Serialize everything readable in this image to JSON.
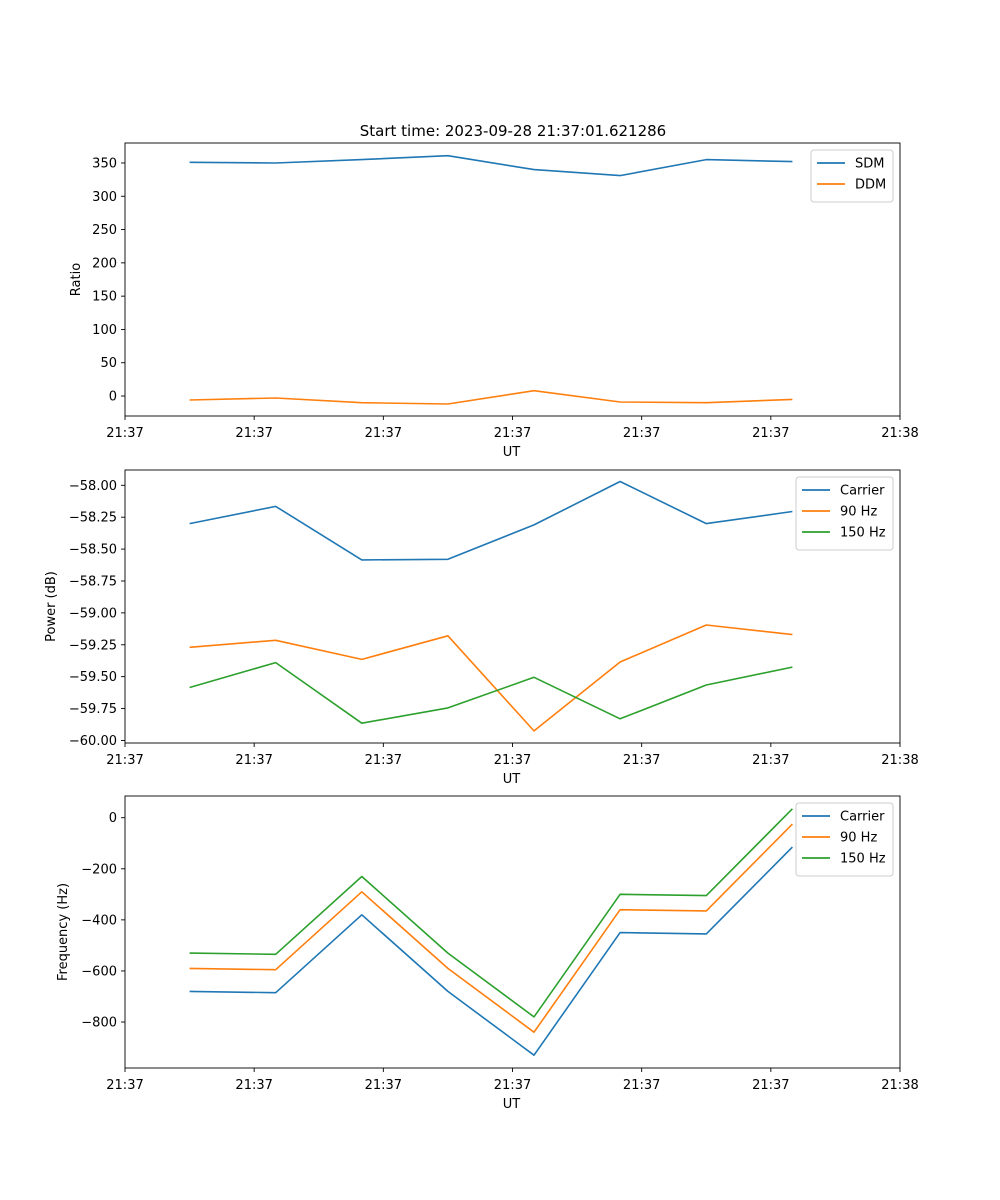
{
  "figure_title": "Start time: 2023-09-28 21:37:01.621286",
  "colors": {
    "blue": "#1f77b4",
    "orange": "#ff7f0e",
    "green": "#2ca02c"
  },
  "chart_data": [
    {
      "type": "line",
      "title": "Start time: 2023-09-28 21:37:01.621286",
      "xlabel": "UT",
      "ylabel": "Ratio",
      "xlim": [
        0,
        9
      ],
      "x": [
        0.75,
        1.75,
        2.75,
        3.75,
        4.75,
        5.75,
        6.75,
        7.75
      ],
      "xtick_positions": [
        0,
        1.5,
        3,
        4.5,
        6,
        7.5,
        9
      ],
      "xtick_labels": [
        "21:37",
        "21:37",
        "21:37",
        "21:37",
        "21:37",
        "21:37",
        "21:38"
      ],
      "ylim": [
        -30,
        380
      ],
      "yticks": [
        0,
        50,
        100,
        150,
        200,
        250,
        300,
        350
      ],
      "ytick_labels": [
        "0",
        "50",
        "100",
        "150",
        "200",
        "250",
        "300",
        "350"
      ],
      "legend_position": "top-right",
      "series": [
        {
          "name": "SDM",
          "color": "#1f77b4",
          "values": [
            351,
            350,
            355,
            361,
            340,
            331,
            355,
            352
          ]
        },
        {
          "name": "DDM",
          "color": "#ff7f0e",
          "values": [
            -6,
            -3,
            -10,
            -12,
            8,
            -9,
            -10,
            -5
          ]
        }
      ]
    },
    {
      "type": "line",
      "title": "",
      "xlabel": "UT",
      "ylabel": "Power (dB)",
      "xlim": [
        0,
        9
      ],
      "x": [
        0.75,
        1.75,
        2.75,
        3.75,
        4.75,
        5.75,
        6.75,
        7.75
      ],
      "xtick_positions": [
        0,
        1.5,
        3,
        4.5,
        6,
        7.5,
        9
      ],
      "xtick_labels": [
        "21:37",
        "21:37",
        "21:37",
        "21:37",
        "21:37",
        "21:37",
        "21:38"
      ],
      "ylim": [
        -60.02,
        -57.88
      ],
      "yticks": [
        -60.0,
        -59.75,
        -59.5,
        -59.25,
        -59.0,
        -58.75,
        -58.5,
        -58.25,
        -58.0
      ],
      "ytick_labels": [
        "−60.00",
        "−59.75",
        "−59.50",
        "−59.25",
        "−59.00",
        "−58.75",
        "−58.50",
        "−58.25",
        "−58.00"
      ],
      "legend_position": "top-right",
      "series": [
        {
          "name": "Carrier",
          "color": "#1f77b4",
          "values": [
            -58.3,
            -58.165,
            -58.585,
            -58.58,
            -58.31,
            -57.97,
            -58.3,
            -58.205
          ]
        },
        {
          "name": "90 Hz",
          "color": "#ff7f0e",
          "values": [
            -59.27,
            -59.215,
            -59.365,
            -59.18,
            -59.925,
            -59.385,
            -59.095,
            -59.17
          ]
        },
        {
          "name": "150 Hz",
          "color": "#2ca02c",
          "values": [
            -59.585,
            -59.39,
            -59.865,
            -59.745,
            -59.505,
            -59.83,
            -59.565,
            -59.425
          ]
        }
      ]
    },
    {
      "type": "line",
      "title": "",
      "xlabel": "UT",
      "ylabel": "Frequency (Hz)",
      "xlim": [
        0,
        9
      ],
      "x": [
        0.75,
        1.75,
        2.75,
        3.75,
        4.75,
        5.75,
        6.75,
        7.75
      ],
      "xtick_positions": [
        0,
        1.5,
        3,
        4.5,
        6,
        7.5,
        9
      ],
      "xtick_labels": [
        "21:37",
        "21:37",
        "21:37",
        "21:37",
        "21:37",
        "21:37",
        "21:38"
      ],
      "ylim": [
        -980,
        85
      ],
      "yticks": [
        -800,
        -600,
        -400,
        -200,
        0
      ],
      "ytick_labels": [
        "−800",
        "−600",
        "−400",
        "−200",
        "0"
      ],
      "legend_position": "top-right",
      "series": [
        {
          "name": "Carrier",
          "color": "#1f77b4",
          "values": [
            -680,
            -685,
            -380,
            -680,
            -930,
            -450,
            -455,
            -115
          ]
        },
        {
          "name": "90 Hz",
          "color": "#ff7f0e",
          "values": [
            -590,
            -595,
            -290,
            -590,
            -840,
            -360,
            -365,
            -25
          ]
        },
        {
          "name": "150 Hz",
          "color": "#2ca02c",
          "values": [
            -530,
            -535,
            -230,
            -530,
            -780,
            -300,
            -305,
            35
          ]
        }
      ]
    }
  ]
}
